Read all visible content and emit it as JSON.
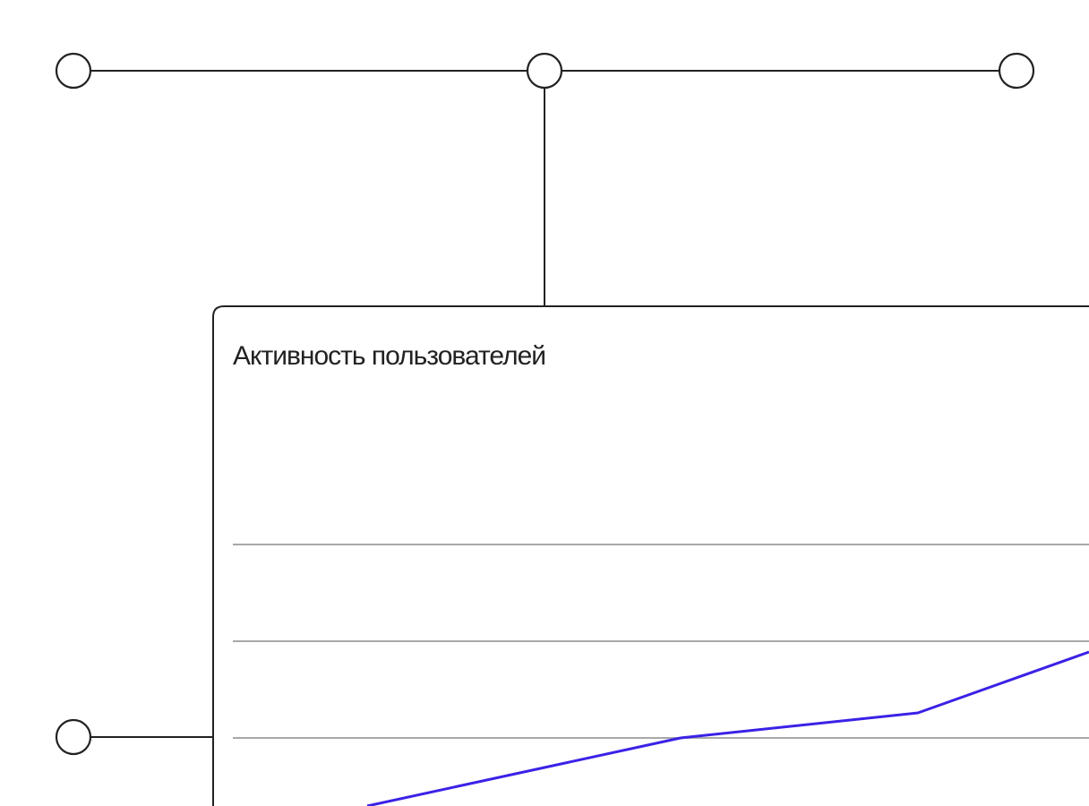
{
  "card": {
    "title": "Активность пользователей"
  }
}
